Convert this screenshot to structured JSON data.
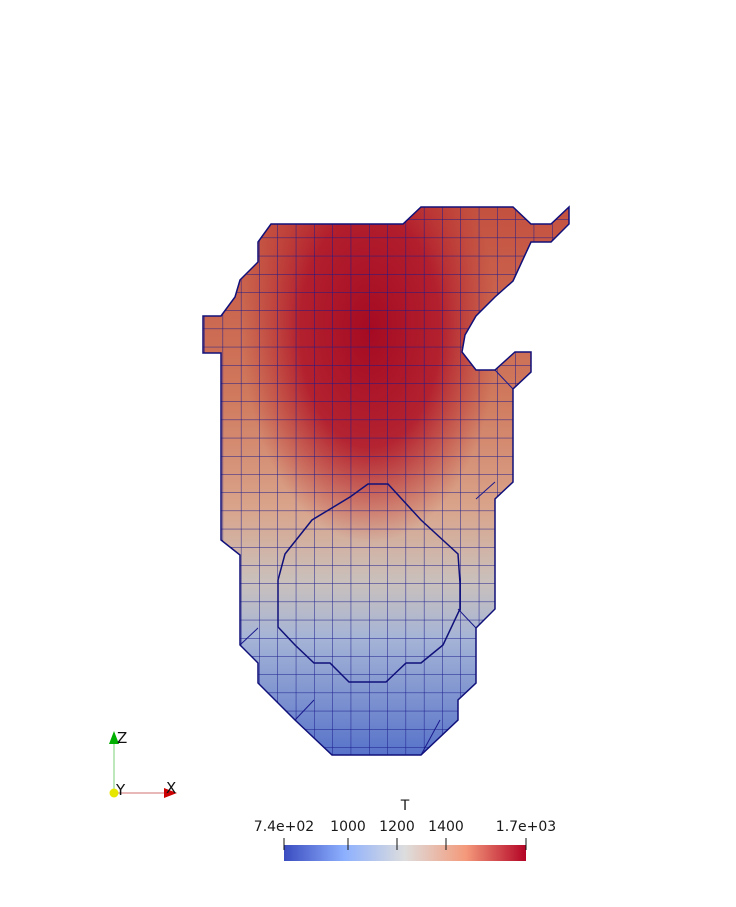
{
  "scalar_bar": {
    "title": "T",
    "ticks": [
      "7.4e+02",
      "1000",
      "1200",
      "1400",
      "1.7e+03"
    ],
    "tick_values": [
      740,
      1000,
      1200,
      1400,
      1700
    ],
    "range": [
      740,
      1700
    ],
    "colormap": [
      "#3b4cc0",
      "#8db0fe",
      "#dddddd",
      "#f49a7b",
      "#b40426"
    ]
  },
  "orientation_axes": {
    "x_label": "X",
    "y_label": "Y",
    "z_label": "Z",
    "x_color": "#cc0000",
    "y_color": "#e6e600",
    "z_color": "#00b000"
  },
  "mesh": {
    "edge_color": "#1a1a8c",
    "background": "#ffffff"
  }
}
